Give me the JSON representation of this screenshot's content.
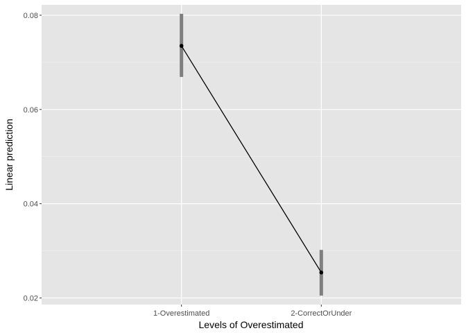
{
  "chart_data": {
    "type": "line",
    "xlabel": "Levels of Overestimated",
    "ylabel": "Linear prediction",
    "categories": [
      "1-Overestimated",
      "2-CorrectOrUnder"
    ],
    "series": [
      {
        "values": [
          0.0735,
          0.0254
        ],
        "ci_low": [
          0.0669,
          0.0205
        ],
        "ci_high": [
          0.0803,
          0.0302
        ]
      }
    ],
    "yticks": [
      0.02,
      0.04,
      0.06,
      0.08
    ],
    "ytick_labels": [
      "0.02",
      "0.04",
      "0.06",
      "0.08"
    ],
    "ylim": [
      0.0186,
      0.0822
    ],
    "grid": true,
    "colors": {
      "panel": "#e5e5e5",
      "grid_major": "#ffffff",
      "grid_minor": "#f2f2f2",
      "line": "#000000",
      "errorbar": "#7f7f7f",
      "tick_text": "#4d4d4d",
      "tick_mark": "#333333"
    }
  }
}
